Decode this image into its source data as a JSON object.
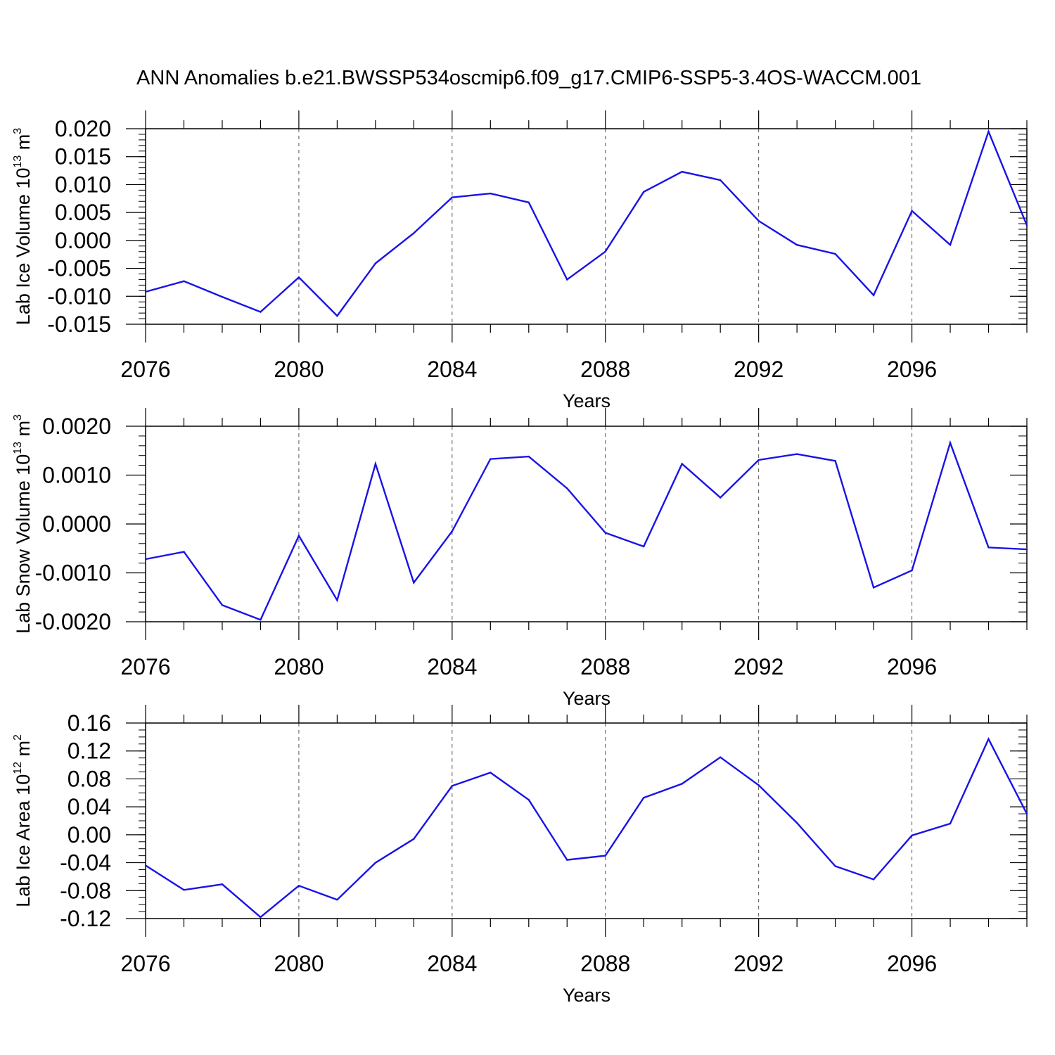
{
  "title": "ANN Anomalies b.e21.BWSSP534oscmip6.f09_g17.CMIP6-SSP5-3.4OS-WACCM.001",
  "colors": {
    "line": "#1a12e6",
    "axis": "#000000",
    "grid": "#555555"
  },
  "chart_data": [
    {
      "type": "line",
      "name": "lab-ice-volume",
      "ylabel": {
        "prefix": "Lab Ice Volume 10",
        "exp": "13",
        "unit": " m",
        "unit_exp": "3"
      },
      "xlabel": "Years",
      "xlim": [
        2076,
        2099
      ],
      "ylim": [
        -0.015,
        0.02
      ],
      "yticks": [
        -0.015,
        -0.01,
        -0.005,
        0.0,
        0.005,
        0.01,
        0.015,
        0.02
      ],
      "ytick_labels": [
        "-0.015",
        "-0.010",
        "-0.005",
        "0.000",
        "0.005",
        "0.010",
        "0.015",
        "0.020"
      ],
      "yminor": 0.001,
      "x": [
        2076,
        2077,
        2078,
        2079,
        2080,
        2081,
        2082,
        2083,
        2084,
        2085,
        2086,
        2087,
        2088,
        2089,
        2090,
        2091,
        2092,
        2093,
        2094,
        2095,
        2096,
        2097,
        2098,
        2099
      ],
      "values": [
        -0.0092,
        -0.0073,
        -0.0101,
        -0.0128,
        -0.0066,
        -0.0135,
        -0.0041,
        0.0013,
        0.0077,
        0.0084,
        0.0068,
        -0.007,
        -0.002,
        0.0087,
        0.0123,
        0.0108,
        0.0035,
        -0.0008,
        -0.0024,
        -0.0098,
        0.0053,
        -0.0008,
        0.0195,
        0.0027
      ]
    },
    {
      "type": "line",
      "name": "lab-snow-volume",
      "ylabel": {
        "prefix": "Lab Snow Volume 10",
        "exp": "13",
        "unit": " m",
        "unit_exp": "3"
      },
      "xlabel": "Years",
      "xlim": [
        2076,
        2099
      ],
      "ylim": [
        -0.002,
        0.002
      ],
      "yticks": [
        -0.002,
        -0.001,
        0.0,
        0.001,
        0.002
      ],
      "ytick_labels": [
        "-0.0020",
        "-0.0010",
        "0.0000",
        "0.0010",
        "0.0020"
      ],
      "yminor": 0.0002,
      "x": [
        2076,
        2077,
        2078,
        2079,
        2080,
        2081,
        2082,
        2083,
        2084,
        2085,
        2086,
        2087,
        2088,
        2089,
        2090,
        2091,
        2092,
        2093,
        2094,
        2095,
        2096,
        2097,
        2098,
        2099
      ],
      "values": [
        -0.00072,
        -0.00057,
        -0.00166,
        -0.00196,
        -0.00024,
        -0.00156,
        0.00123,
        -0.0012,
        -0.00015,
        0.00133,
        0.00138,
        0.00073,
        -0.00018,
        -0.00046,
        0.00123,
        0.00054,
        0.00131,
        0.00143,
        0.00129,
        -0.0013,
        -0.00095,
        0.00166,
        -0.00048,
        -0.00052
      ]
    },
    {
      "type": "line",
      "name": "lab-ice-area",
      "ylabel": {
        "prefix": "Lab Ice Area 10",
        "exp": "12",
        "unit": " m",
        "unit_exp": "2"
      },
      "xlabel": "Years",
      "xlim": [
        2076,
        2099
      ],
      "ylim": [
        -0.12,
        0.16
      ],
      "yticks": [
        -0.12,
        -0.08,
        -0.04,
        0.0,
        0.04,
        0.08,
        0.12,
        0.16
      ],
      "ytick_labels": [
        "-0.12",
        "-0.08",
        "-0.04",
        "0.00",
        "0.04",
        "0.08",
        "0.12",
        "0.16"
      ],
      "yminor": 0.01,
      "x": [
        2076,
        2077,
        2078,
        2079,
        2080,
        2081,
        2082,
        2083,
        2084,
        2085,
        2086,
        2087,
        2088,
        2089,
        2090,
        2091,
        2092,
        2093,
        2094,
        2095,
        2096,
        2097,
        2098,
        2099
      ],
      "values": [
        -0.044,
        -0.079,
        -0.071,
        -0.118,
        -0.073,
        -0.093,
        -0.04,
        -0.006,
        0.07,
        0.089,
        0.05,
        -0.036,
        -0.03,
        0.053,
        0.073,
        0.111,
        0.071,
        0.017,
        -0.045,
        -0.064,
        -0.001,
        0.016,
        0.137,
        0.03
      ]
    }
  ],
  "xticks": [
    2076,
    2080,
    2084,
    2088,
    2092,
    2096
  ],
  "xtick_labels": [
    "2076",
    "2080",
    "2084",
    "2088",
    "2092",
    "2096"
  ]
}
